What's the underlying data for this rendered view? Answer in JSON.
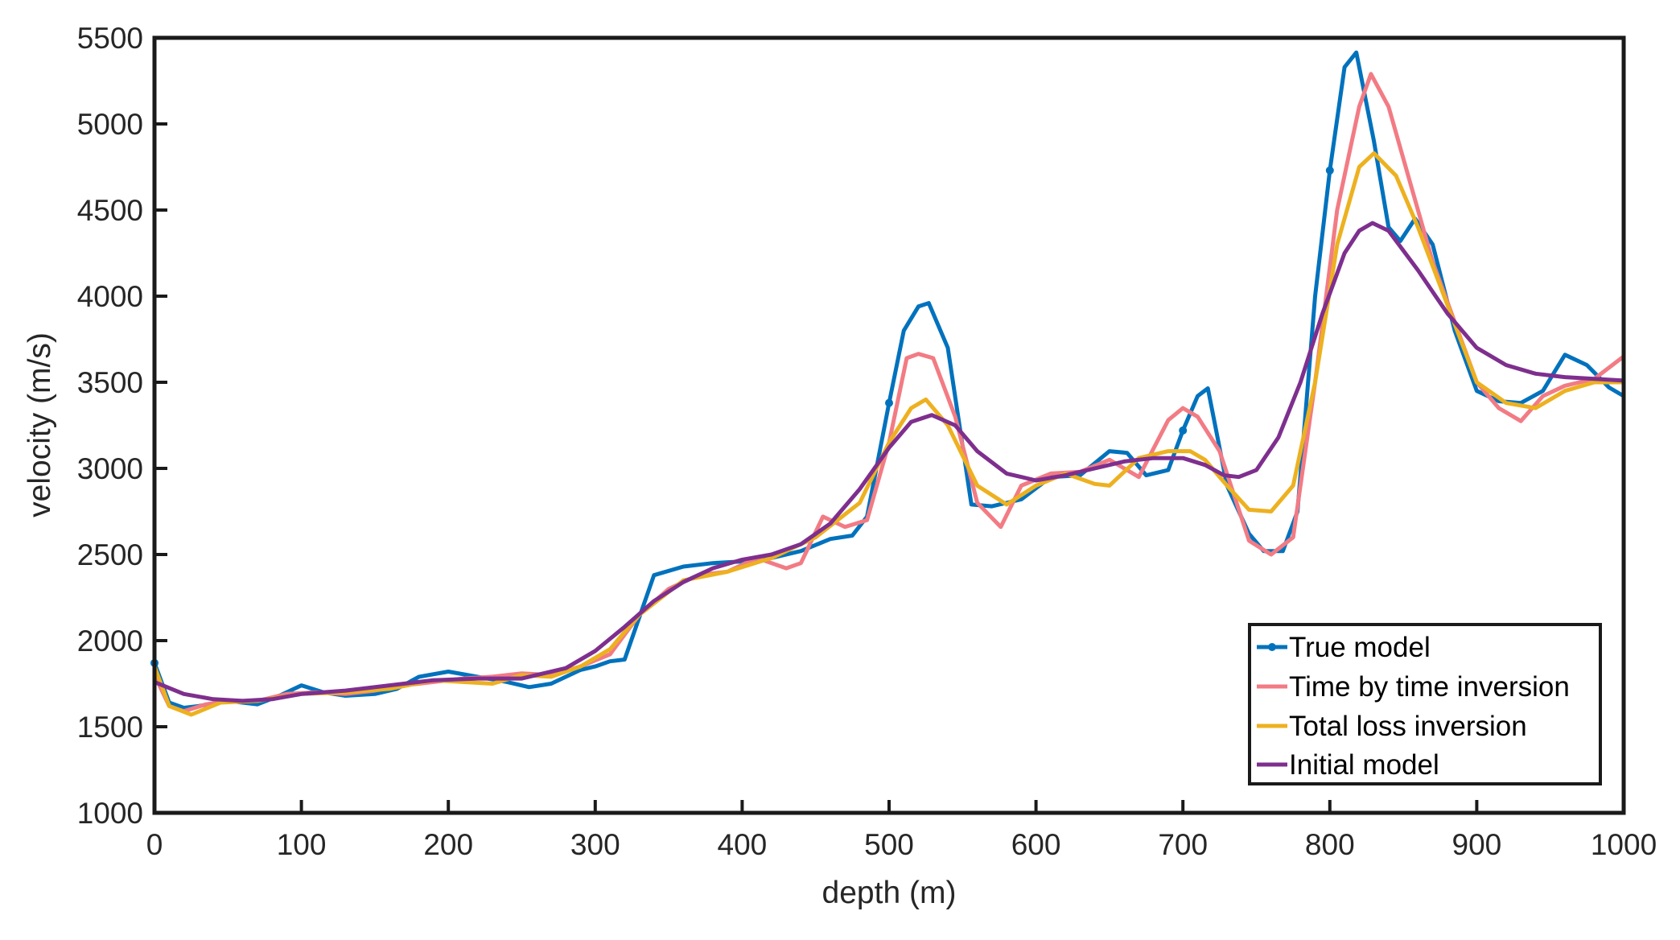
{
  "chart_data": {
    "type": "line",
    "title": "",
    "xlabel": "depth (m)",
    "ylabel": "velocity (m/s)",
    "xlim": [
      0,
      1000
    ],
    "ylim": [
      1000,
      5500
    ],
    "xticks": [
      0,
      100,
      200,
      300,
      400,
      500,
      600,
      700,
      800,
      900,
      1000
    ],
    "yticks": [
      1000,
      1500,
      2000,
      2500,
      3000,
      3500,
      4000,
      4500,
      5000,
      5500
    ],
    "grid": false,
    "legend_position": "lower right",
    "series": [
      {
        "name": "True model",
        "color": "#0072BD",
        "marker": "dot",
        "x": [
          0,
          10,
          20,
          30,
          50,
          70,
          85,
          100,
          115,
          130,
          150,
          165,
          180,
          200,
          220,
          240,
          255,
          270,
          290,
          300,
          310,
          320,
          340,
          360,
          380,
          400,
          420,
          440,
          460,
          475,
          485,
          500,
          510,
          520,
          527,
          540,
          556,
          570,
          590,
          610,
          630,
          650,
          662,
          675,
          690,
          700,
          710,
          717,
          730,
          745,
          755,
          768,
          778,
          790,
          800,
          810,
          818,
          830,
          840,
          848,
          858,
          870,
          885,
          900,
          915,
          930,
          945,
          960,
          975,
          990,
          1000
        ],
        "y": [
          1870,
          1640,
          1610,
          1620,
          1650,
          1630,
          1680,
          1740,
          1700,
          1680,
          1690,
          1720,
          1790,
          1820,
          1790,
          1760,
          1730,
          1750,
          1830,
          1850,
          1880,
          1890,
          2380,
          2430,
          2450,
          2460,
          2480,
          2520,
          2590,
          2610,
          2720,
          3380,
          3800,
          3940,
          3960,
          3700,
          2790,
          2780,
          2820,
          2950,
          2960,
          3100,
          3090,
          2960,
          2990,
          3220,
          3420,
          3465,
          2900,
          2620,
          2520,
          2520,
          2750,
          4000,
          4730,
          5330,
          5415,
          4900,
          4400,
          4320,
          4450,
          4300,
          3800,
          3450,
          3390,
          3380,
          3450,
          3660,
          3600,
          3470,
          3420
        ]
      },
      {
        "name": "Time by time inversion",
        "color": "#F27B84",
        "x": [
          0,
          10,
          20,
          35,
          50,
          70,
          90,
          110,
          130,
          150,
          170,
          190,
          210,
          230,
          250,
          270,
          290,
          310,
          330,
          350,
          370,
          390,
          410,
          430,
          440,
          455,
          470,
          485,
          500,
          512,
          520,
          530,
          545,
          560,
          576,
          590,
          610,
          630,
          650,
          670,
          690,
          700,
          710,
          725,
          745,
          760,
          775,
          790,
          805,
          820,
          828,
          840,
          855,
          870,
          885,
          900,
          915,
          930,
          945,
          960,
          980,
          1000
        ],
        "y": [
          1800,
          1620,
          1590,
          1630,
          1650,
          1650,
          1690,
          1700,
          1690,
          1710,
          1740,
          1760,
          1780,
          1790,
          1810,
          1800,
          1850,
          1920,
          2150,
          2300,
          2380,
          2400,
          2480,
          2420,
          2450,
          2720,
          2660,
          2700,
          3150,
          3640,
          3665,
          3640,
          3300,
          2800,
          2660,
          2900,
          2970,
          2980,
          3050,
          2950,
          3280,
          3350,
          3300,
          3100,
          2580,
          2500,
          2600,
          3500,
          4500,
          5100,
          5290,
          5100,
          4650,
          4200,
          3850,
          3500,
          3350,
          3275,
          3420,
          3480,
          3520,
          3650
        ]
      },
      {
        "name": "Total loss inversion",
        "color": "#EDB120",
        "x": [
          0,
          10,
          25,
          45,
          70,
          100,
          130,
          160,
          190,
          210,
          230,
          250,
          270,
          290,
          310,
          330,
          360,
          390,
          420,
          450,
          480,
          500,
          515,
          525,
          540,
          560,
          580,
          600,
          620,
          640,
          650,
          670,
          690,
          705,
          715,
          730,
          745,
          760,
          775,
          790,
          805,
          820,
          830,
          845,
          860,
          880,
          900,
          920,
          940,
          960,
          980,
          1000
        ],
        "y": [
          1850,
          1620,
          1570,
          1640,
          1650,
          1690,
          1700,
          1720,
          1770,
          1760,
          1750,
          1800,
          1790,
          1850,
          1950,
          2150,
          2350,
          2400,
          2480,
          2600,
          2800,
          3150,
          3350,
          3400,
          3250,
          2900,
          2790,
          2900,
          2970,
          2910,
          2900,
          3060,
          3100,
          3100,
          3050,
          2900,
          2760,
          2750,
          2900,
          3500,
          4300,
          4750,
          4830,
          4700,
          4400,
          3950,
          3500,
          3380,
          3350,
          3450,
          3500,
          3500
        ]
      },
      {
        "name": "Initial model",
        "color": "#7E2F8E",
        "x": [
          0,
          20,
          40,
          60,
          80,
          100,
          130,
          160,
          190,
          220,
          250,
          280,
          300,
          320,
          340,
          360,
          380,
          400,
          420,
          440,
          460,
          480,
          500,
          515,
          529,
          545,
          560,
          580,
          600,
          620,
          640,
          660,
          680,
          700,
          715,
          728,
          738,
          750,
          765,
          780,
          795,
          810,
          820,
          829,
          840,
          860,
          880,
          900,
          920,
          940,
          960,
          980,
          1000
        ],
        "y": [
          1760,
          1690,
          1660,
          1650,
          1660,
          1690,
          1710,
          1740,
          1770,
          1780,
          1780,
          1840,
          1940,
          2080,
          2230,
          2340,
          2420,
          2470,
          2500,
          2560,
          2680,
          2880,
          3120,
          3270,
          3310,
          3250,
          3100,
          2970,
          2930,
          2960,
          3000,
          3040,
          3060,
          3060,
          3020,
          2960,
          2950,
          2990,
          3180,
          3500,
          3900,
          4250,
          4380,
          4425,
          4380,
          4150,
          3900,
          3700,
          3600,
          3550,
          3530,
          3520,
          3510
        ]
      }
    ]
  },
  "legend": {
    "items": [
      {
        "label": "True model",
        "color": "#0072BD",
        "marker": "dot"
      },
      {
        "label": "Time by time inversion",
        "color": "#F27B84"
      },
      {
        "label": "Total loss inversion",
        "color": "#EDB120"
      },
      {
        "label": "Initial model",
        "color": "#7E2F8E"
      }
    ]
  },
  "axes": {
    "xlabel": "depth (m)",
    "ylabel": "velocity (m/s)"
  }
}
